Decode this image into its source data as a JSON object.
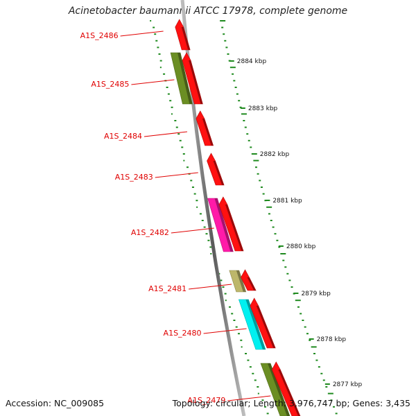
{
  "title": "Acinetobacter baumannii ATCC 17978, complete genome",
  "footer": {
    "accession": "Accession: NC_009085",
    "topology": "Topology: circular; Length: 3,976,747 bp; Genes: 3,435"
  },
  "colors": {
    "cds": "#ff1010",
    "tick": "#1e8a1e",
    "backbone": "#888888",
    "label": "#e00000"
  },
  "genes": [
    {
      "locus": "A1S_2486",
      "feature_color": "#ff1010"
    },
    {
      "locus": "A1S_2485",
      "feature_color": "#ff1010",
      "extra_color": "#6b8e23"
    },
    {
      "locus": "A1S_2484",
      "feature_color": "#ff1010"
    },
    {
      "locus": "A1S_2483",
      "feature_color": "#ff1010"
    },
    {
      "locus": "A1S_2482",
      "feature_color": "#ff1010",
      "extra_color": "#ff1aa8"
    },
    {
      "locus": "A1S_2481",
      "feature_color": "#ff1010",
      "extra_color": "#bdb76b"
    },
    {
      "locus": "A1S_2480",
      "feature_color": "#ff1010",
      "extra_color": "#00f0f0"
    },
    {
      "locus": "A1S_2479",
      "feature_color": "#ff1010",
      "extra_color": "#6b8e23"
    }
  ],
  "scale_labels": [
    "2884 kbp",
    "2883 kbp",
    "2882 kbp",
    "2881 kbp",
    "2880 kbp",
    "2879 kbp",
    "2878 kbp",
    "2877 kbp"
  ]
}
